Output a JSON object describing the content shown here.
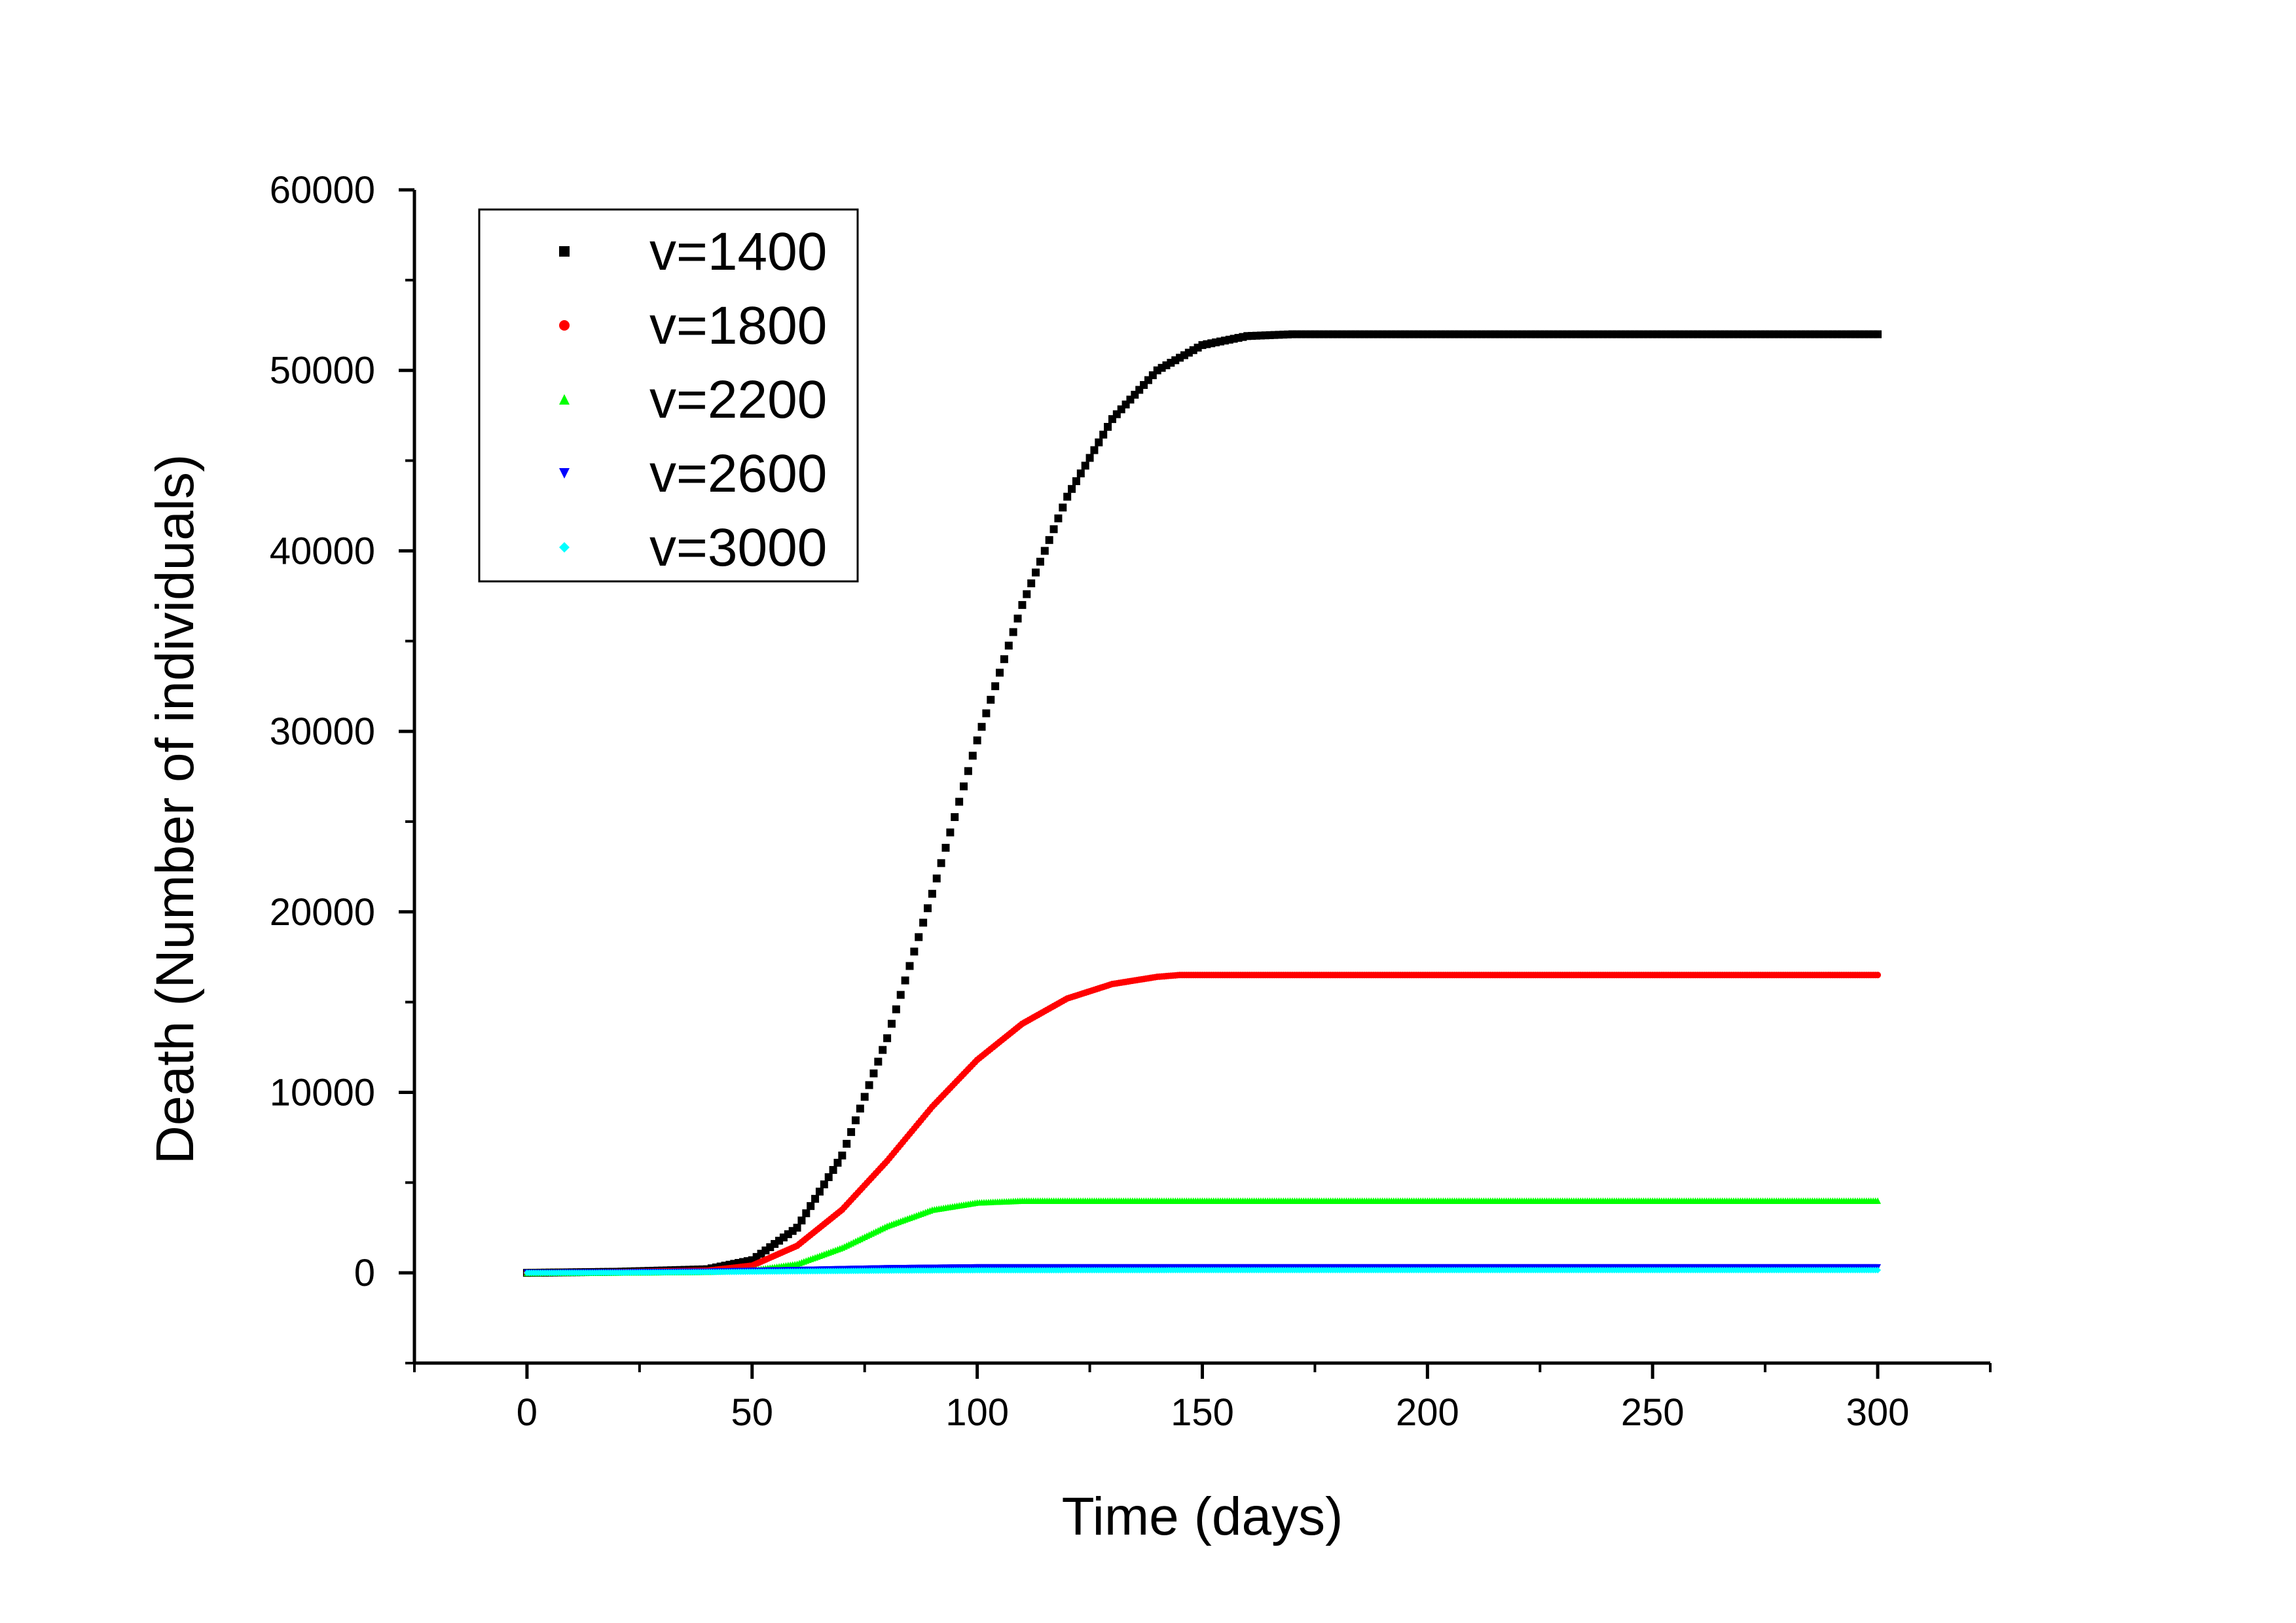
{
  "chart_data": {
    "type": "scatter",
    "title": "",
    "xlabel": "Time (days)",
    "ylabel": "Death (Number of individuals)",
    "xlim": [
      -25,
      325
    ],
    "ylim": [
      -5000,
      60000
    ],
    "xticks": [
      0,
      50,
      100,
      150,
      200,
      250,
      300
    ],
    "yticks": [
      0,
      10000,
      20000,
      30000,
      40000,
      50000,
      60000
    ],
    "grid": false,
    "legend_position": "top-left",
    "series": [
      {
        "name": "v=1400",
        "color": "#000000",
        "marker": "square",
        "x": [
          0,
          20,
          40,
          50,
          60,
          70,
          80,
          90,
          100,
          110,
          120,
          130,
          140,
          150,
          160,
          170,
          180,
          200,
          250,
          300
        ],
        "y": [
          0,
          60,
          200,
          700,
          2500,
          6500,
          13000,
          21000,
          29500,
          37000,
          43000,
          47300,
          50000,
          51400,
          51900,
          52000,
          52000,
          52000,
          52000,
          52000
        ]
      },
      {
        "name": "v=1800",
        "color": "#ff0000",
        "marker": "circle",
        "x": [
          0,
          20,
          40,
          50,
          60,
          70,
          80,
          90,
          100,
          110,
          120,
          130,
          140,
          145,
          150,
          200,
          250,
          300
        ],
        "y": [
          0,
          40,
          120,
          400,
          1500,
          3500,
          6200,
          9200,
          11800,
          13800,
          15200,
          16000,
          16400,
          16500,
          16500,
          16500,
          16500,
          16500
        ]
      },
      {
        "name": "v=2200",
        "color": "#00ff00",
        "marker": "triangle-up",
        "x": [
          0,
          20,
          40,
          50,
          60,
          70,
          80,
          90,
          100,
          110,
          120,
          150,
          200,
          250,
          300
        ],
        "y": [
          0,
          20,
          60,
          150,
          500,
          1400,
          2600,
          3500,
          3900,
          4000,
          4000,
          4000,
          4000,
          4000,
          4000
        ]
      },
      {
        "name": "v=2600",
        "color": "#0000ff",
        "marker": "triangle-down",
        "x": [
          0,
          20,
          40,
          60,
          80,
          100,
          150,
          200,
          250,
          300
        ],
        "y": [
          0,
          20,
          60,
          150,
          250,
          300,
          300,
          300,
          300,
          300
        ]
      },
      {
        "name": "v=3000",
        "color": "#00ffff",
        "marker": "diamond",
        "x": [
          0,
          20,
          40,
          60,
          80,
          100,
          150,
          200,
          250,
          300
        ],
        "y": [
          0,
          10,
          40,
          80,
          120,
          140,
          150,
          150,
          150,
          150
        ]
      }
    ]
  }
}
